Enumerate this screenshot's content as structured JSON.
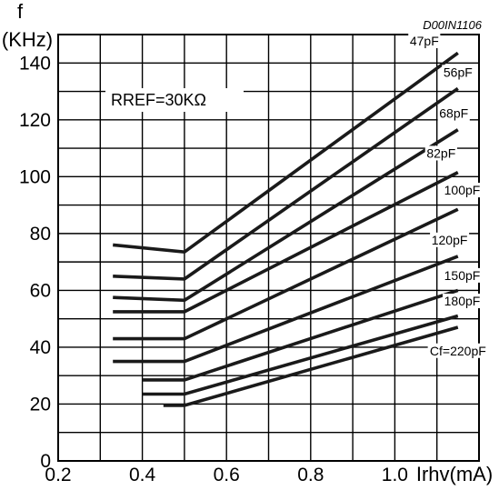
{
  "chart_data": {
    "type": "line",
    "code": "D00IN1106",
    "annotation": "RREF=30KΩ",
    "ylabel_line1": "f",
    "ylabel_line2": "(KHz)",
    "xlabel": "Irhv(mA)",
    "xlim": [
      0.2,
      1.2
    ],
    "ylim": [
      0,
      150
    ],
    "grid": true,
    "x_ticks": [
      0.2,
      0.4,
      0.6,
      0.8,
      1.0
    ],
    "x_tick_labels": [
      "0.2",
      "0.4",
      "0.6",
      "0.8",
      "1.0"
    ],
    "y_ticks": [
      0,
      20,
      40,
      60,
      80,
      100,
      120,
      140
    ],
    "y_tick_labels": [
      "0",
      "20",
      "40",
      "60",
      "80",
      "100",
      "120",
      "140"
    ],
    "series": [
      {
        "name": "47pF",
        "points": [
          [
            0.33,
            76
          ],
          [
            0.5,
            73.5
          ],
          [
            1.15,
            143.5
          ]
        ]
      },
      {
        "name": "56pF",
        "points": [
          [
            0.33,
            65
          ],
          [
            0.5,
            64
          ],
          [
            1.15,
            131
          ]
        ]
      },
      {
        "name": "68pF",
        "points": [
          [
            0.33,
            57.5
          ],
          [
            0.5,
            56.5
          ],
          [
            1.15,
            116.5
          ]
        ]
      },
      {
        "name": "82pF",
        "points": [
          [
            0.33,
            52.5
          ],
          [
            0.5,
            52.5
          ],
          [
            1.15,
            101.5
          ]
        ]
      },
      {
        "name": "100pF",
        "points": [
          [
            0.33,
            43
          ],
          [
            0.5,
            43
          ],
          [
            1.15,
            88.5
          ]
        ]
      },
      {
        "name": "120pF",
        "points": [
          [
            0.33,
            35
          ],
          [
            0.5,
            35
          ],
          [
            1.15,
            72
          ]
        ]
      },
      {
        "name": "150pF",
        "points": [
          [
            0.4,
            28.5
          ],
          [
            0.5,
            28.5
          ],
          [
            1.15,
            60
          ]
        ]
      },
      {
        "name": "180pF",
        "points": [
          [
            0.4,
            23.5
          ],
          [
            0.5,
            23.5
          ],
          [
            1.15,
            51
          ]
        ]
      },
      {
        "name": "Cf=220pF",
        "points": [
          [
            0.45,
            19.5
          ],
          [
            0.5,
            19.5
          ],
          [
            1.15,
            47
          ]
        ]
      }
    ]
  }
}
